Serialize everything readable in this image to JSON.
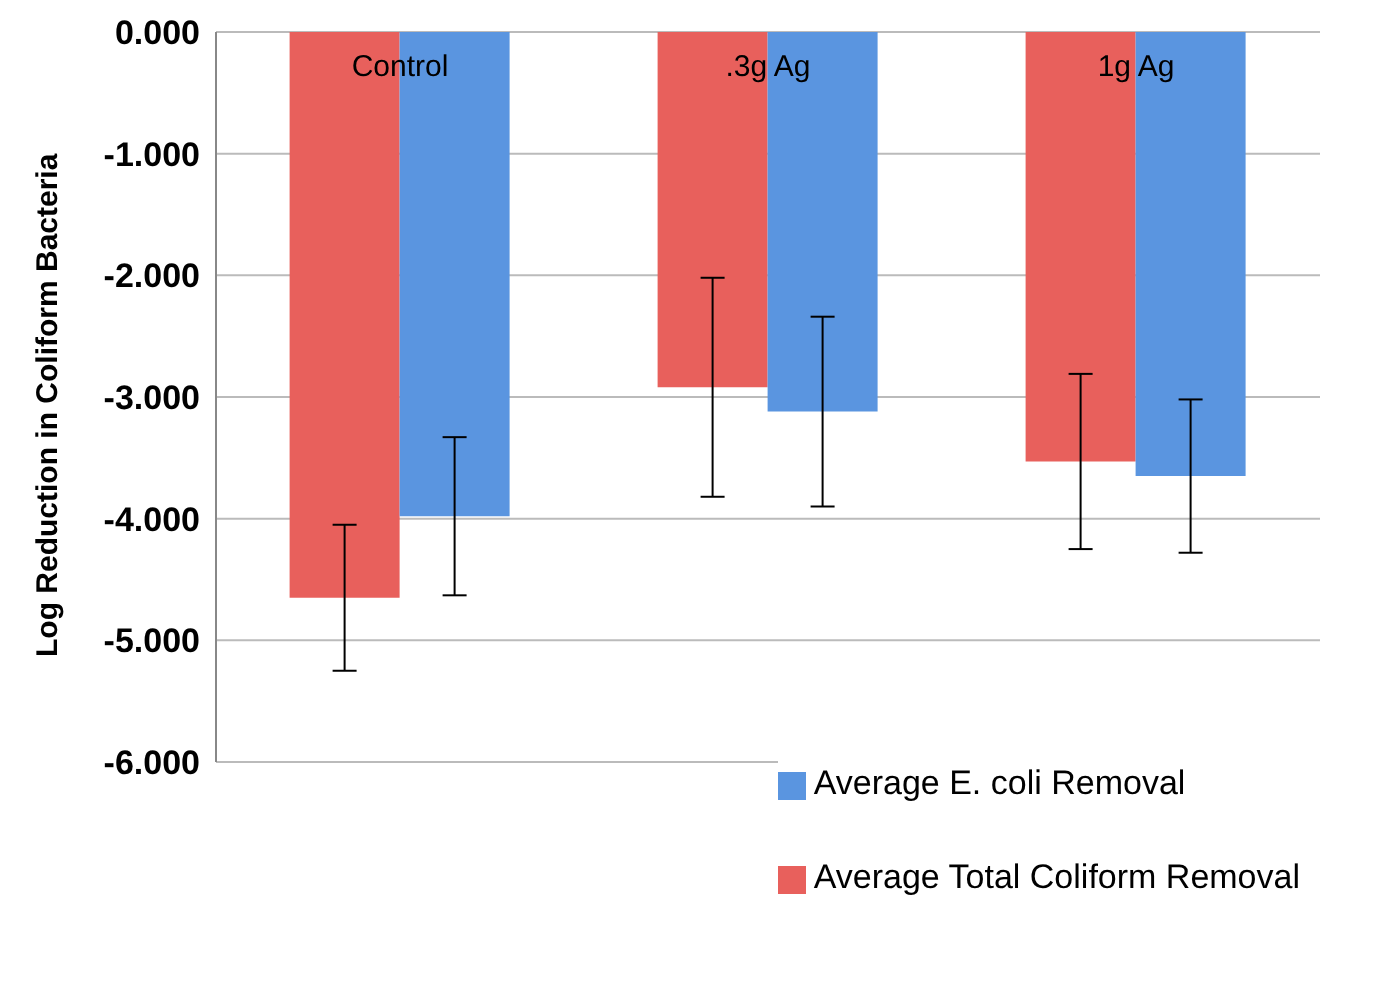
{
  "chart_data": {
    "type": "bar",
    "ylabel": "Log Reduction in Coliform Bacteria",
    "categories": [
      "Control",
      ".3g Ag",
      "1g Ag"
    ],
    "series": [
      {
        "name": "Average Total Coliform Removal",
        "color": "#e8605c",
        "values": [
          -4.65,
          -2.92,
          -3.53
        ],
        "errors": [
          0.6,
          0.9,
          0.72
        ]
      },
      {
        "name": "Average E. coli Removal",
        "color": "#5a95e0",
        "values": [
          -3.98,
          -3.12,
          -3.65
        ],
        "errors": [
          0.65,
          0.78,
          0.63
        ]
      }
    ],
    "ylim": [
      -6,
      0
    ],
    "yticks": [
      {
        "value": 0,
        "label": "0.000"
      },
      {
        "value": -1,
        "label": "-1.000"
      },
      {
        "value": -2,
        "label": "-2.000"
      },
      {
        "value": -3,
        "label": "-3.000"
      },
      {
        "value": -4,
        "label": "-4.000"
      },
      {
        "value": -5,
        "label": "-5.000"
      },
      {
        "value": -6,
        "label": "-6.000"
      }
    ],
    "grid": "y",
    "legend": "bottom right"
  }
}
